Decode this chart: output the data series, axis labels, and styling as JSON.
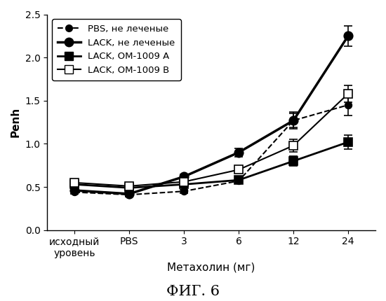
{
  "x_positions": [
    0,
    1,
    2,
    3,
    4,
    5
  ],
  "x_labels": [
    "исходный\nуровень",
    "PBS",
    "3",
    "6",
    "12",
    "24"
  ],
  "xlabel": "Метахолин (мг)",
  "ylabel": "Penh",
  "title_bottom": "ФИГ. 6",
  "ylim": [
    0,
    2.5
  ],
  "yticks": [
    0,
    0.5,
    1.0,
    1.5,
    2.0,
    2.5
  ],
  "series": [
    {
      "label_bold": "PBS,",
      "label_normal": " не леченые",
      "y": [
        0.44,
        0.41,
        0.45,
        0.57,
        1.27,
        1.45
      ],
      "yerr": [
        0.02,
        0.02,
        0.02,
        0.03,
        0.1,
        0.12
      ],
      "color": "black",
      "linestyle": "dashed",
      "linewidth": 1.5,
      "marker": "o",
      "marker_size": 7,
      "marker_facecolor": "black",
      "marker_edgecolor": "black"
    },
    {
      "label_bold": "LACK,",
      "label_normal": " не леченые",
      "y": [
        0.46,
        0.42,
        0.62,
        0.9,
        1.27,
        2.25
      ],
      "yerr": [
        0.02,
        0.02,
        0.03,
        0.05,
        0.08,
        0.12
      ],
      "color": "black",
      "linestyle": "solid",
      "linewidth": 2.5,
      "marker": "o",
      "marker_size": 9,
      "marker_facecolor": "black",
      "marker_edgecolor": "black"
    },
    {
      "label_bold": "LACK,",
      "label_normal": " ОМ-1009 А",
      "y": [
        0.53,
        0.49,
        0.53,
        0.58,
        0.8,
        1.02
      ],
      "yerr": [
        0.02,
        0.02,
        0.02,
        0.03,
        0.06,
        0.08
      ],
      "color": "black",
      "linestyle": "solid",
      "linewidth": 2.0,
      "marker": "s",
      "marker_size": 8,
      "marker_facecolor": "black",
      "marker_edgecolor": "black"
    },
    {
      "label_bold": "LACK,",
      "label_normal": " ОМ-1009 В",
      "y": [
        0.55,
        0.51,
        0.56,
        0.7,
        0.98,
        1.58
      ],
      "yerr": [
        0.02,
        0.02,
        0.02,
        0.04,
        0.07,
        0.1
      ],
      "color": "black",
      "linestyle": "solid",
      "linewidth": 1.5,
      "marker": "s",
      "marker_size": 8,
      "marker_facecolor": "white",
      "marker_edgecolor": "black"
    }
  ],
  "legend_fontsize": 9.5,
  "axis_label_fontsize": 11,
  "tick_fontsize": 10,
  "fig_title_fontsize": 15,
  "background_color": "white"
}
